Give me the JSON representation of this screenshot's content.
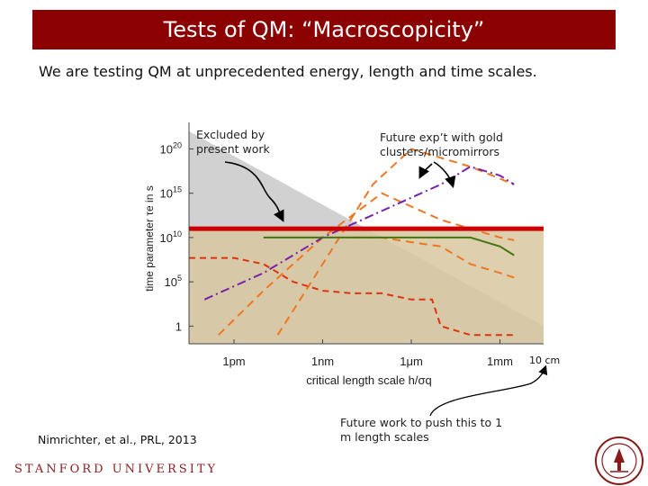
{
  "slide": {
    "title": "Tests of QM: “Macroscopicity”",
    "subtitle": "We are testing QM at unprecedented energy, length and time scales.",
    "citation": "Nimrichter, et al., PRL, 2013",
    "university": "STANFORD UNIVERSITY",
    "annotations": {
      "excluded": [
        "Excluded by",
        "present work"
      ],
      "future_exp": [
        "Future exp’t with gold",
        "clusters/micromirrors"
      ],
      "future_work": [
        "Future work to push this to 1",
        "m length scales"
      ],
      "ten_cm": "10 cm"
    },
    "colors": {
      "title_bg": "#8b0000",
      "excluded_region": "#cccccc",
      "present_region": "#d8c8a0",
      "red_line": "#cc0000",
      "orange_dashed": "#ee7722",
      "purple_dashdot": "#7722aa",
      "green_solid": "#447711",
      "red_dashed": "#dd3311"
    }
  },
  "chart_data": {
    "type": "line",
    "xlabel": "critical length scale h/σq",
    "ylabel": "time parameter τe in s",
    "x_scale": "log",
    "y_scale": "log",
    "xlim": [
      3e-14,
      0.03
    ],
    "ylim": [
      0.01,
      1e+23
    ],
    "x_ticks": [
      {
        "value": 1e-12,
        "label": "1pm"
      },
      {
        "value": 1e-09,
        "label": "1nm"
      },
      {
        "value": 1e-06,
        "label": "1μm"
      },
      {
        "value": 0.001,
        "label": "1mm"
      }
    ],
    "y_ticks": [
      {
        "value": 1,
        "label": "1"
      },
      {
        "value": 100000.0,
        "label": "10^5"
      },
      {
        "value": 10000000000.0,
        "label": "10^10"
      },
      {
        "value": 1000000000000000.0,
        "label": "10^15"
      },
      {
        "value": 1e+20,
        "label": "10^20"
      }
    ],
    "regions": [
      {
        "kind": "excluded-triangle",
        "boundary_x": [
          3e-14,
          0.03
        ],
        "boundary_y": [
          1e+22,
          1
        ]
      },
      {
        "kind": "present-work",
        "y_max": 100000000000.0
      }
    ],
    "horizontal_line": {
      "y": 100000000000.0
    },
    "series": [
      {
        "style": "orange-dashed-1",
        "x": [
          3e-11,
          1e-09,
          5e-08,
          1e-06,
          0.0001,
          0.003
        ],
        "y": [
          0.1,
          10000000.0,
          1e+16,
          1e+20,
          1e+18,
          1e+16
        ]
      },
      {
        "style": "orange-dashed-2",
        "x": [
          3e-13,
          1e-11,
          1e-09,
          1e-07,
          1e-05,
          0.001,
          0.003
        ],
        "y": [
          0.1,
          10000.0,
          10000000000.0,
          1000000000000000.0,
          1000000000000.0,
          10000000000.0,
          5000000000.0
        ]
      },
      {
        "style": "orange-dashed-3",
        "x": [
          1e-08,
          1e-07,
          1e-06,
          1e-05,
          0.0001,
          0.001,
          0.003
        ],
        "y": [
          10000000000.0,
          10000000000.0,
          3000000000.0,
          1000000000.0,
          10000000.0,
          1000000.0,
          300000.0
        ]
      },
      {
        "style": "purple-dashdot",
        "x": [
          1e-13,
          1e-11,
          1e-09,
          1e-07,
          1e-05,
          0.0001,
          0.001,
          0.003
        ],
        "y": [
          1000.0,
          1000000.0,
          10000000000.0,
          10000000000000.0,
          1e+16,
          1e+18,
          1e+17,
          1e+16
        ]
      },
      {
        "style": "green-solid",
        "x": [
          1e-11,
          1e-09,
          1e-07,
          1e-05,
          0.0001,
          0.001,
          0.003
        ],
        "y": [
          10000000000.0,
          10000000000.0,
          10000000000.0,
          10000000000.0,
          10000000000.0,
          1000000000.0,
          100000000.0
        ]
      },
      {
        "style": "red-dashed",
        "x": [
          3e-14,
          1e-12,
          1e-11,
          1e-10,
          1e-09,
          1e-08,
          1e-07,
          1e-06,
          5e-06,
          1e-05,
          0.0001,
          0.001,
          0.003
        ],
        "y": [
          50000000.0,
          50000000.0,
          10000000.0,
          100000.0,
          10000.0,
          5000.0,
          5000.0,
          1000.0,
          1000.0,
          1.0,
          0.1,
          0.1,
          0.1
        ]
      }
    ]
  }
}
